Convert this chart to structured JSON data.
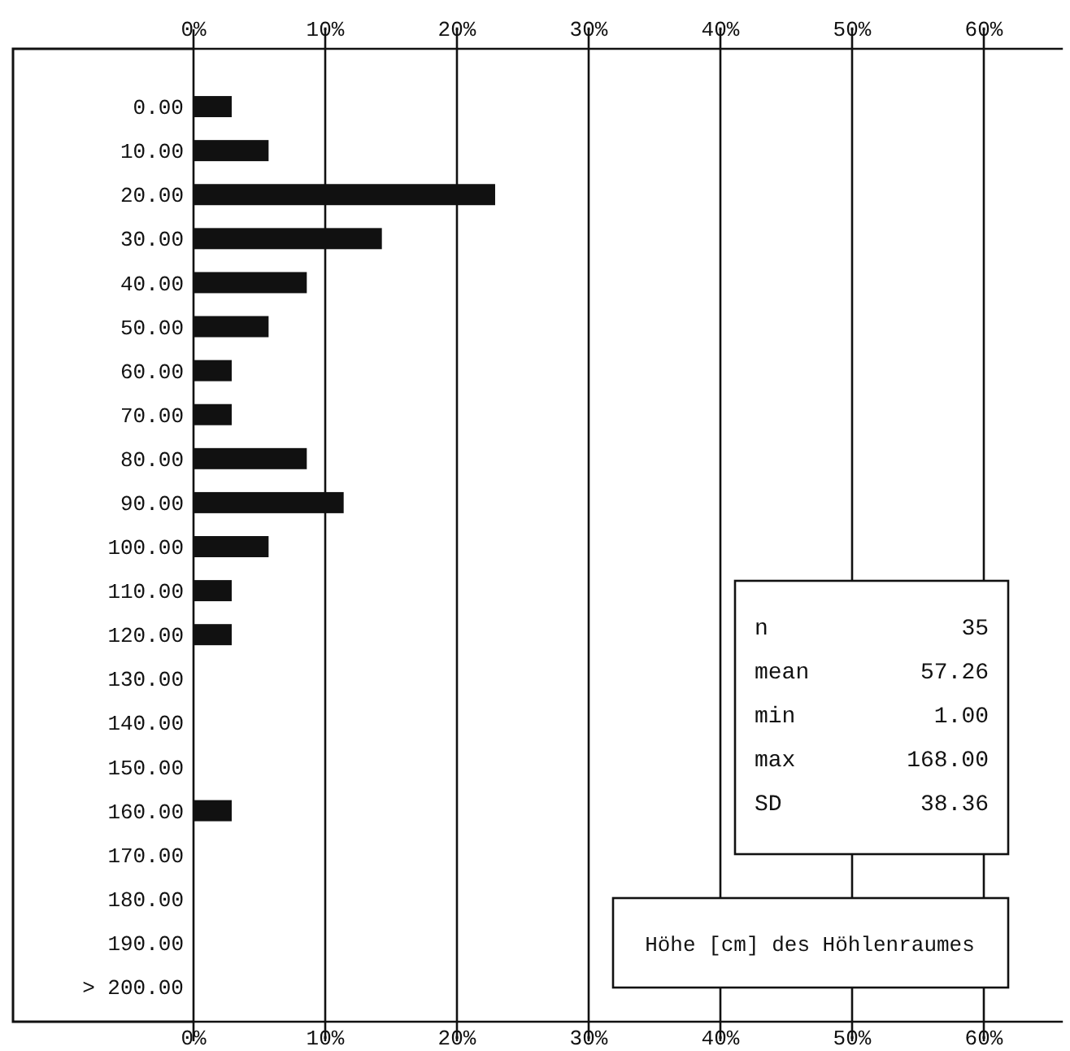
{
  "chart_data": {
    "type": "bar",
    "orientation": "horizontal",
    "title": "Höhe [cm] des Höhlenraumes",
    "categories": [
      "0.00",
      "10.00",
      "20.00",
      "30.00",
      "40.00",
      "50.00",
      "60.00",
      "70.00",
      "80.00",
      "90.00",
      "100.00",
      "110.00",
      "120.00",
      "130.00",
      "140.00",
      "150.00",
      "160.00",
      "170.00",
      "180.00",
      "190.00",
      "> 200.00"
    ],
    "values": [
      2.9,
      5.7,
      22.9,
      14.3,
      8.6,
      5.7,
      2.9,
      2.9,
      8.6,
      11.4,
      5.7,
      2.9,
      2.9,
      0,
      0,
      0,
      2.9,
      0,
      0,
      0,
      0
    ],
    "color": "#111111",
    "xlim": [
      0,
      66
    ],
    "xticks": [
      {
        "value": 0,
        "label": "0%"
      },
      {
        "value": 10,
        "label": "10%"
      },
      {
        "value": 20,
        "label": "20%"
      },
      {
        "value": 30,
        "label": "30%"
      },
      {
        "value": 40,
        "label": "40%"
      },
      {
        "value": 50,
        "label": "50%"
      },
      {
        "value": 60,
        "label": "60%"
      }
    ],
    "x2lim": [
      0,
      66
    ],
    "x2ticks": [
      {
        "value": 0,
        "label": "0%"
      },
      {
        "value": 10,
        "label": "10%"
      },
      {
        "value": 20,
        "label": "20%"
      },
      {
        "value": 30,
        "label": "30%"
      },
      {
        "value": 40,
        "label": "40%"
      },
      {
        "value": 50,
        "label": "50%"
      },
      {
        "value": 60,
        "label": "60%"
      }
    ],
    "grid": "x",
    "annotations": [
      "n 35",
      "mean 57.26",
      "min 1.00",
      "max 168.00",
      "SD 38.36"
    ]
  }
}
